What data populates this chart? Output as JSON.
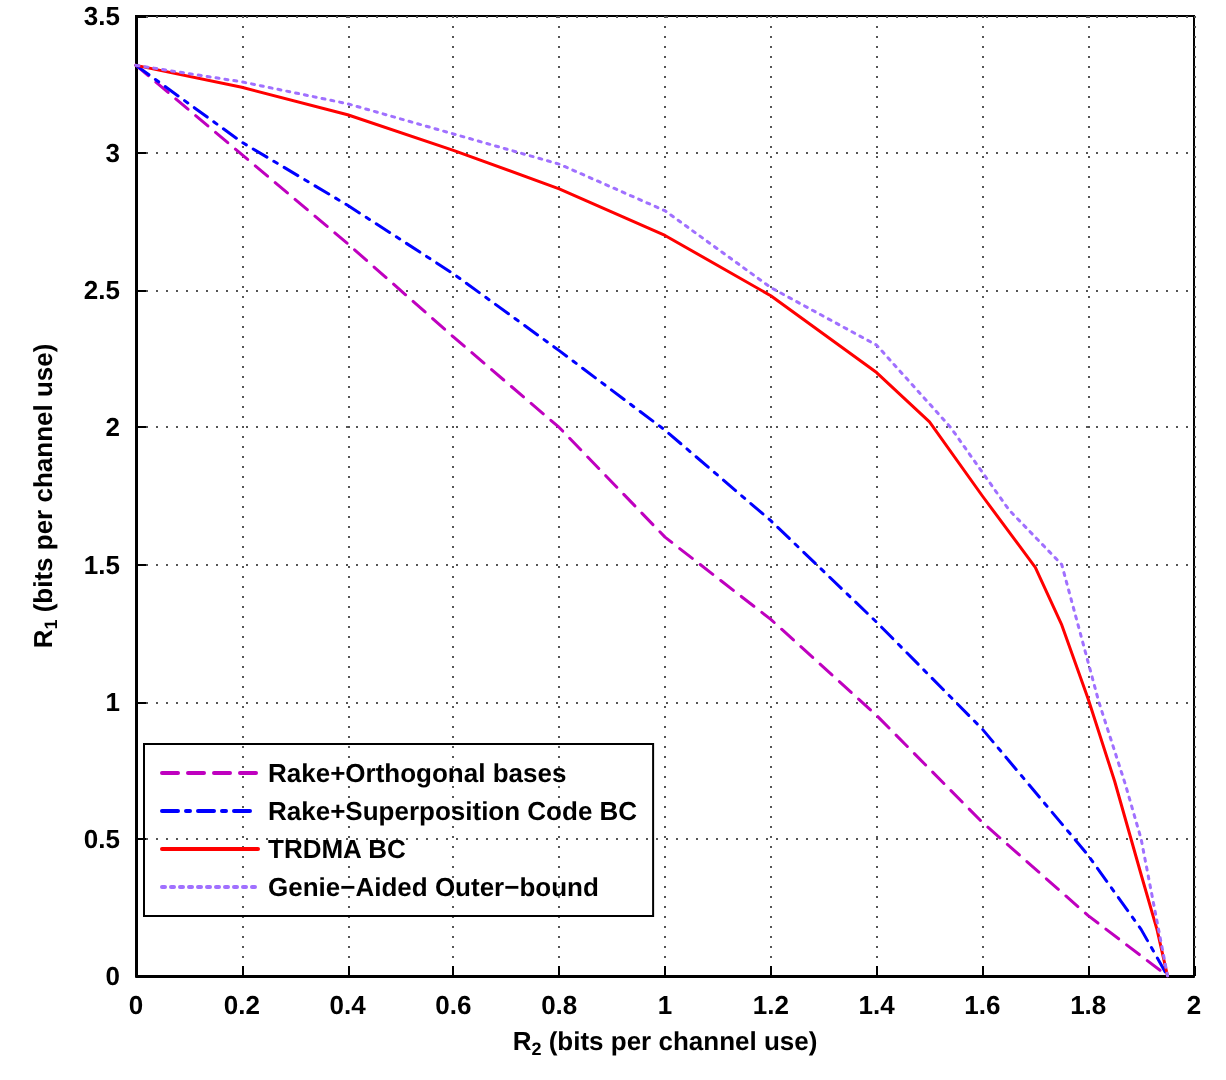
{
  "chart_data": {
    "type": "line",
    "xlabel": "R$_{2}$ (bits per channel use)",
    "ylabel": "R$_{1}$ (bits per channel use)",
    "xlim": [
      0,
      2
    ],
    "xticks": [
      0,
      0.2,
      0.4,
      0.6,
      0.8,
      1,
      1.2,
      1.4,
      1.6,
      1.8,
      2
    ],
    "ylim": [
      0,
      3.5
    ],
    "yticks": [
      0,
      0.5,
      1,
      1.5,
      2,
      2.5,
      3,
      3.5
    ],
    "grid": true,
    "legend": "bottom left",
    "marker": "none",
    "series": [
      {
        "name": "Rake+Orthogonal bases",
        "color": "#bf00bf",
        "line_style": "dashed",
        "x": [
          0,
          0.4,
          0.6,
          0.8,
          1,
          1.2,
          1.4,
          1.6,
          1.8,
          1.95
        ],
        "values": [
          3.32,
          2.67,
          2.33,
          2.0,
          1.6,
          1.3,
          0.95,
          0.56,
          0.22,
          0
        ]
      },
      {
        "name": "Rake+Superposition Code BC",
        "color": "#0000ff",
        "line_style": "dashdot",
        "x": [
          0,
          0.2,
          0.4,
          0.6,
          0.8,
          1,
          1.2,
          1.4,
          1.6,
          1.8,
          1.9,
          1.95
        ],
        "values": [
          3.32,
          3.04,
          2.81,
          2.56,
          2.28,
          1.99,
          1.66,
          1.29,
          0.9,
          0.44,
          0.17,
          0
        ]
      },
      {
        "name": "TRDMA BC",
        "color": "#ff0000",
        "line_style": "solid",
        "x": [
          0,
          0.2,
          0.4,
          0.6,
          0.8,
          1,
          1.2,
          1.4,
          1.5,
          1.6,
          1.7,
          1.75,
          1.8,
          1.85,
          1.9,
          1.93,
          1.95
        ],
        "values": [
          3.32,
          3.24,
          3.14,
          3.01,
          2.87,
          2.7,
          2.48,
          2.2,
          2.02,
          1.75,
          1.49,
          1.28,
          1.01,
          0.71,
          0.37,
          0.17,
          0
        ]
      },
      {
        "name": "Genie−Aided Outer−bound",
        "color": "#a070ff",
        "line_style": "dotted",
        "x": [
          0,
          0.2,
          0.4,
          0.6,
          0.8,
          1,
          1.2,
          1.4,
          1.54,
          1.65,
          1.75,
          1.82,
          1.87,
          1.9,
          1.95
        ],
        "values": [
          3.32,
          3.26,
          3.18,
          3.07,
          2.96,
          2.79,
          2.51,
          2.3,
          2.0,
          1.7,
          1.5,
          1.0,
          0.7,
          0.5,
          0
        ]
      }
    ]
  }
}
